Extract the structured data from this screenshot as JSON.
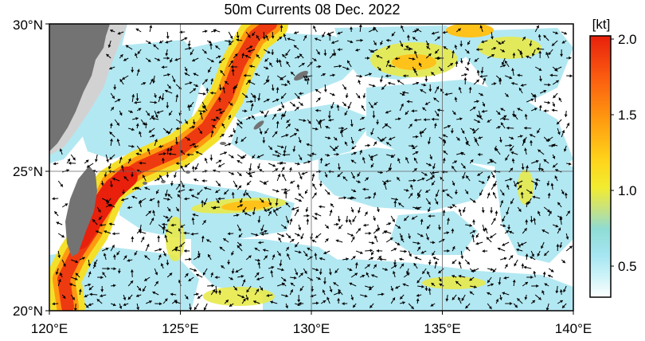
{
  "title": "50m Currents  08 Dec. 2022",
  "lon_labels": [
    "120°E",
    "125°E",
    "130°E",
    "135°E",
    "140°E"
  ],
  "lat_labels": [
    "20°N",
    "25°N",
    "30°N"
  ],
  "colorbar": {
    "unit": "[kt]",
    "ticks": [
      "0.5",
      "1.0",
      "1.5",
      "2.0"
    ],
    "tick_values": [
      0.5,
      1.0,
      1.5,
      2.0
    ],
    "range": [
      0.2,
      2.1
    ],
    "stops": [
      {
        "v": 0.2,
        "c": "#ffffff"
      },
      {
        "v": 0.35,
        "c": "#cdf3f8"
      },
      {
        "v": 0.5,
        "c": "#a6e6f2"
      },
      {
        "v": 0.7,
        "c": "#8fdcd5"
      },
      {
        "v": 0.85,
        "c": "#c8e27e"
      },
      {
        "v": 1.0,
        "c": "#f2ec30"
      },
      {
        "v": 1.2,
        "c": "#ffd21a"
      },
      {
        "v": 1.5,
        "c": "#ff9a10"
      },
      {
        "v": 1.8,
        "c": "#fb5c10"
      },
      {
        "v": 2.1,
        "c": "#e8200c"
      }
    ]
  },
  "colors": {
    "land": "#737373",
    "shelf": "#d2d2d2",
    "grid": "#666666"
  }
}
